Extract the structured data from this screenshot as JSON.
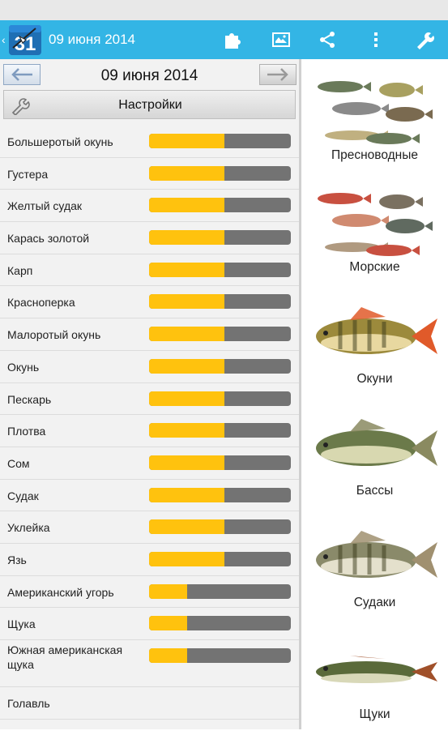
{
  "app": {
    "title": "09 июня 2014",
    "icon_text": "31"
  },
  "toolbar": {
    "icons": [
      "puzzle-icon",
      "map-icon",
      "share-icon",
      "overflow-menu-icon",
      "wrench-icon"
    ]
  },
  "date_nav": {
    "date": "09 июня 2014",
    "prev_icon": "arrow-left-icon",
    "next_icon": "arrow-right-icon"
  },
  "settings": {
    "label": "Настройки",
    "icon": "wrench-icon"
  },
  "colors": {
    "accent": "#33b5e5",
    "bar_fill": "#ffc20e",
    "bar_track": "#737373"
  },
  "fish": [
    {
      "name": "Большеротый окунь",
      "level": 0.53
    },
    {
      "name": "Густера",
      "level": 0.53
    },
    {
      "name": "Желтый судак",
      "level": 0.53
    },
    {
      "name": "Карась золотой",
      "level": 0.53
    },
    {
      "name": "Карп",
      "level": 0.53
    },
    {
      "name": "Красноперка",
      "level": 0.53
    },
    {
      "name": "Малоротый окунь",
      "level": 0.53
    },
    {
      "name": "Окунь",
      "level": 0.53
    },
    {
      "name": "Пескарь",
      "level": 0.53
    },
    {
      "name": "Плотва",
      "level": 0.53
    },
    {
      "name": "Сом",
      "level": 0.53
    },
    {
      "name": "Судак",
      "level": 0.53
    },
    {
      "name": "Уклейка",
      "level": 0.53
    },
    {
      "name": "Язь",
      "level": 0.53
    },
    {
      "name": "Американский угорь",
      "level": 0.27
    },
    {
      "name": "Щука",
      "level": 0.27
    },
    {
      "name": "Южная американская щука",
      "level": 0.27
    },
    {
      "name": "Голавль",
      "level": null
    }
  ],
  "categories": [
    {
      "label": "Пресноводные",
      "image": "freshwater-fish-group"
    },
    {
      "label": "Морские",
      "image": "sea-fish-group"
    },
    {
      "label": "Окуни",
      "image": "perch-fish"
    },
    {
      "label": "Бассы",
      "image": "bass-fish"
    },
    {
      "label": "Судаки",
      "image": "zander-fish"
    },
    {
      "label": "Щуки",
      "image": "pike-fish"
    }
  ]
}
